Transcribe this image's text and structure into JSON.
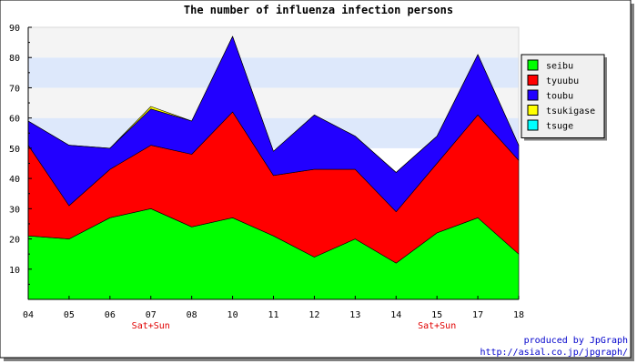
{
  "chart_data": {
    "type": "area",
    "stacked": true,
    "title": "The number of influenza infection persons",
    "xlabel": "",
    "ylabel": "",
    "categories": [
      "04",
      "05",
      "06",
      "07",
      "08",
      "10",
      "11",
      "12",
      "13",
      "14",
      "15",
      "17",
      "18"
    ],
    "sub_labels": [
      "",
      "",
      "",
      "Sat+Sun",
      "",
      "",
      "",
      "",
      "",
      "",
      "Sat+Sun",
      "",
      ""
    ],
    "y_ticks": [
      10,
      20,
      30,
      40,
      50,
      60,
      70,
      80,
      90
    ],
    "ylim": [
      0,
      90
    ],
    "grid": "horizontal bands",
    "band_colors": [
      "#ffffff",
      "#f4f4f4",
      "#dde8fb"
    ],
    "legend_position": "right",
    "series": [
      {
        "name": "seibu",
        "color": "#00ff00",
        "values": [
          21,
          20,
          27,
          30,
          24,
          27,
          21,
          14,
          20,
          12,
          22,
          27,
          15
        ]
      },
      {
        "name": "tyuubu",
        "color": "#ff0000",
        "values": [
          30,
          11,
          16,
          21,
          24,
          35,
          20,
          29,
          23,
          17,
          23,
          34,
          31
        ]
      },
      {
        "name": "toubu",
        "color": "#2200ff",
        "values": [
          8,
          20,
          7,
          12,
          11,
          25,
          8,
          18,
          11,
          13,
          9,
          20,
          5
        ]
      },
      {
        "name": "tsukigase",
        "color": "#ffff00",
        "values": [
          0,
          0,
          0,
          0.8,
          0,
          0,
          0,
          0,
          0,
          0,
          0,
          0,
          0
        ]
      },
      {
        "name": "tsuge",
        "color": "#00ffff",
        "values": [
          0,
          0,
          0,
          0,
          0,
          0,
          0,
          0,
          0,
          0,
          0,
          0,
          0
        ]
      }
    ]
  },
  "footer": {
    "produced_by": "produced by JpGraph",
    "url": "http://asial.co.jp/jpgraph/"
  }
}
